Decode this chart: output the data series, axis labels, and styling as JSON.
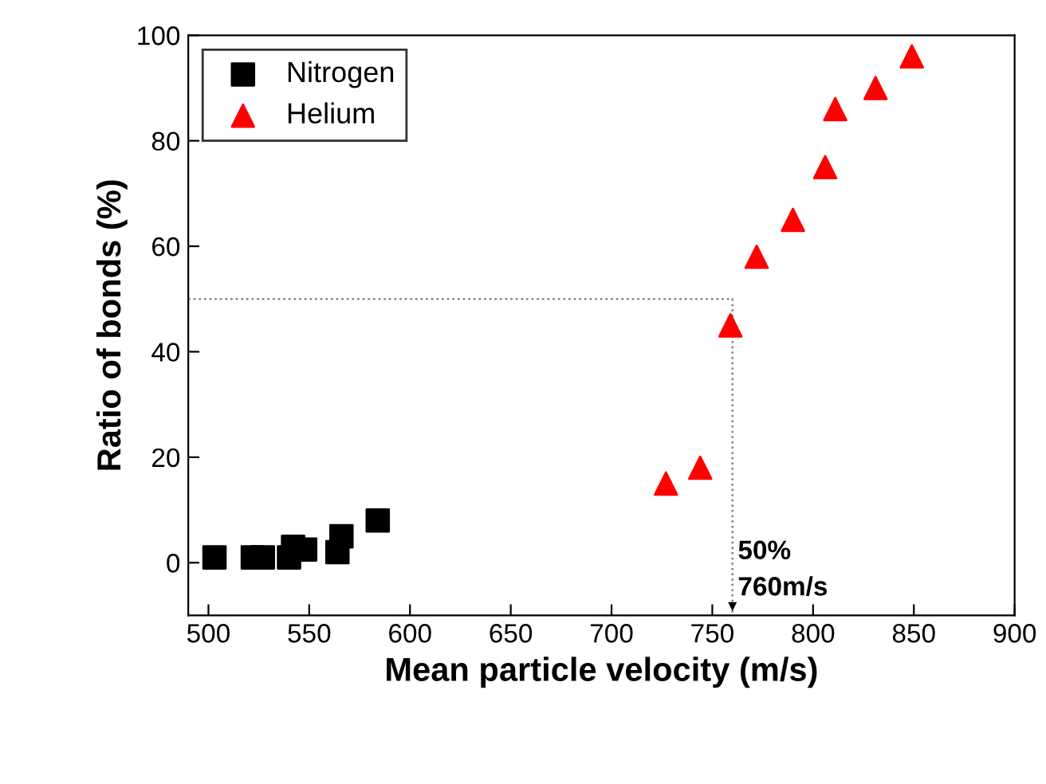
{
  "chart_data": {
    "type": "scatter",
    "xlabel": "Mean particle velocity (m/s)",
    "ylabel": "Ratio of bonds (%)",
    "series": [
      {
        "name": "Nitrogen",
        "color": "#000000",
        "marker": "square",
        "x": [
          503,
          522,
          527,
          540,
          542,
          548,
          564,
          566,
          584
        ],
        "values": [
          1,
          1,
          1,
          1,
          3,
          2.5,
          2,
          5,
          8
        ]
      },
      {
        "name": "Helium",
        "color": "#ff0000",
        "marker": "triangle",
        "x": [
          727,
          744,
          759,
          772,
          790,
          806,
          811,
          831,
          849
        ],
        "values": [
          15,
          18,
          45,
          58,
          65,
          75,
          86,
          90,
          96
        ]
      },
      {
        "type": "line",
        "color": "#808080",
        "line_style": "dotted",
        "x": [
          490,
          760,
          760
        ],
        "values": [
          50,
          50,
          -10
        ]
      }
    ],
    "annotations": [
      "50%\n760m/s"
    ],
    "xlim": [
      490,
      900
    ],
    "xticks": [
      500,
      550,
      600,
      650,
      700,
      750,
      800,
      850,
      900
    ],
    "ylim": [
      -10,
      100
    ],
    "yticks": [
      0,
      20,
      40,
      60,
      80,
      100
    ],
    "legend": "top left",
    "grid": false
  }
}
